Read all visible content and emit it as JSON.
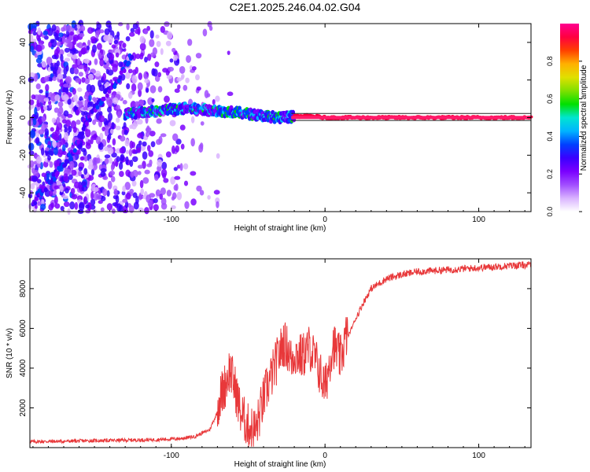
{
  "title": "C2E1.2025.246.04.02.G04",
  "colors": {
    "snr_line": "#e8383a",
    "axis": "#000000",
    "background": "#ffffff",
    "colormap": [
      "#ffffff",
      "#d9b3ff",
      "#a14dff",
      "#7a00ff",
      "#3a00ff",
      "#0040ff",
      "#00b4ff",
      "#00e5d0",
      "#00e000",
      "#80e000",
      "#e0e000",
      "#ffb000",
      "#ff4000",
      "#ff0040",
      "#ff0090"
    ]
  },
  "chart_data": [
    {
      "type": "heatmap",
      "name": "spectrogram",
      "xlabel": "Height of straight line (km)",
      "ylabel": "Frequency (Hz)",
      "xlim": [
        -192,
        134
      ],
      "ylim": [
        -50,
        50
      ],
      "xticks": [
        -100,
        0,
        100
      ],
      "yticks": [
        -40,
        -20,
        0,
        20,
        40
      ],
      "xtick_labels": [
        "-100",
        "0",
        "100"
      ],
      "ytick_labels": [
        "-40",
        "-20",
        "0",
        "20",
        "40"
      ],
      "colorbar": {
        "label": "Normalized spectral amplitude",
        "range": [
          0,
          1
        ],
        "ticks": [
          0.0,
          0.2,
          0.4,
          0.6,
          0.8
        ],
        "tick_labels": [
          "0.0",
          "0.2",
          "0.4",
          "0.6",
          "0.8"
        ]
      },
      "features": [
        {
          "name": "rising branch",
          "x": [
            -190,
            -165,
            -150,
            -135,
            -125
          ],
          "y": [
            -45,
            -20,
            5,
            20,
            35
          ]
        },
        {
          "name": "carrier",
          "x": [
            -130,
            -90,
            -60,
            -30,
            -10,
            0,
            40,
            134
          ],
          "y": [
            2,
            5,
            3,
            0,
            1,
            0,
            0,
            0
          ]
        },
        {
          "name": "noise extent",
          "x_range": [
            -192,
            -55
          ],
          "y_range": [
            -50,
            50
          ]
        }
      ]
    },
    {
      "type": "line",
      "name": "snr",
      "xlabel": "Height of straight line (km)",
      "ylabel": "SNR (10 * v/v)",
      "xlim": [
        -192,
        134
      ],
      "ylim": [
        0,
        9500
      ],
      "xticks": [
        -100,
        0,
        100
      ],
      "yticks": [
        2000,
        4000,
        6000,
        8000
      ],
      "xtick_labels": [
        "-100",
        "0",
        "100"
      ],
      "ytick_labels": [
        "2000",
        "4000",
        "6000",
        "8000"
      ],
      "series": [
        {
          "name": "SNR",
          "color": "#e8383a",
          "x": [
            -192,
            -170,
            -150,
            -130,
            -110,
            -95,
            -85,
            -75,
            -70,
            -65,
            -62,
            -58,
            -55,
            -50,
            -45,
            -42,
            -38,
            -35,
            -30,
            -27,
            -24,
            -22,
            -20,
            -15,
            -10,
            -5,
            0,
            5,
            10,
            15,
            20,
            25,
            30,
            40,
            50,
            60,
            80,
            100,
            120,
            134
          ],
          "y": [
            300,
            320,
            350,
            370,
            400,
            450,
            550,
            900,
            1800,
            2800,
            3600,
            2500,
            1400,
            700,
            500,
            1500,
            2600,
            3200,
            4300,
            4900,
            4600,
            4000,
            4400,
            4200,
            4700,
            3800,
            2600,
            4900,
            4100,
            5600,
            6500,
            7300,
            8000,
            8500,
            8700,
            8850,
            8950,
            9050,
            9150,
            9200
          ],
          "noise_amplitude": 180
        }
      ]
    }
  ]
}
